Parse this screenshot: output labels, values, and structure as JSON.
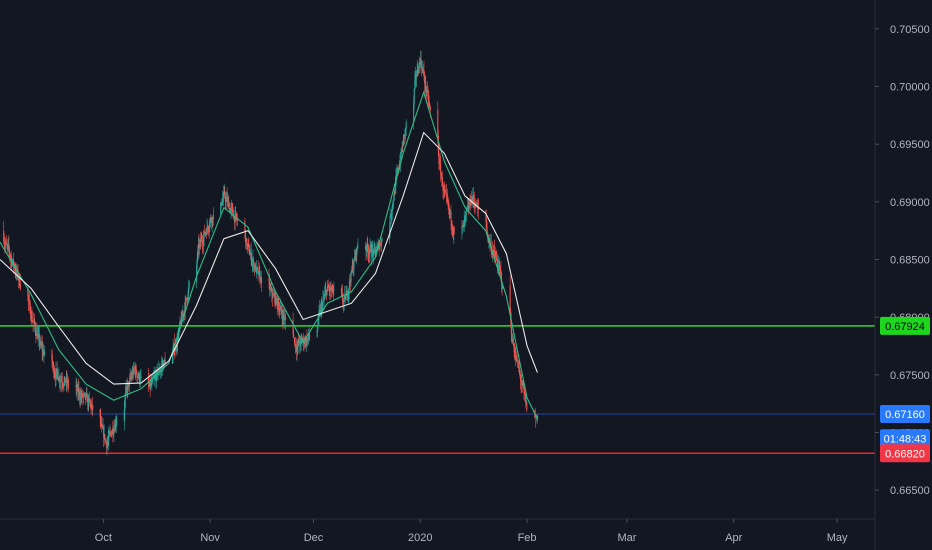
{
  "chart_data": {
    "type": "candlestick",
    "title": "",
    "xlabel": "",
    "ylabel": "",
    "ylim": [
      0.6625,
      0.7075
    ],
    "y_ticks": [
      0.665,
      0.67,
      0.675,
      0.68,
      0.685,
      0.69,
      0.695,
      0.7,
      0.705
    ],
    "y_tick_labels": [
      "0.66500",
      "0.67000",
      "0.67500",
      "0.68000",
      "0.68500",
      "0.69000",
      "0.69500",
      "0.70000",
      "0.70500"
    ],
    "x_range": [
      "2019-09-01",
      "2020-05-12"
    ],
    "x_ticks": [
      {
        "date": "2019-10-01",
        "label": "Oct"
      },
      {
        "date": "2019-11-01",
        "label": "Nov"
      },
      {
        "date": "2019-12-01",
        "label": "Dec"
      },
      {
        "date": "2020-01-01",
        "label": "2020"
      },
      {
        "date": "2020-02-01",
        "label": "Feb"
      },
      {
        "date": "2020-03-01",
        "label": "Mar"
      },
      {
        "date": "2020-04-01",
        "label": "Apr"
      },
      {
        "date": "2020-05-01",
        "label": "May"
      }
    ],
    "grid": false,
    "colors": {
      "background": "#131722",
      "up": "#26a69a",
      "down": "#ef5350",
      "ma_fast": "#2ebd85",
      "ma_slow": "#e8e8e8",
      "support": "#ff1f1f",
      "resistance": "#26e02a",
      "axis_text": "#b2b5be"
    },
    "price_path": [
      {
        "date": "2019-09-01",
        "price": 0.6875
      },
      {
        "date": "2019-09-05",
        "price": 0.6845
      },
      {
        "date": "2019-09-09",
        "price": 0.6812
      },
      {
        "date": "2019-09-13",
        "price": 0.6772
      },
      {
        "date": "2019-09-17",
        "price": 0.6752
      },
      {
        "date": "2019-09-22",
        "price": 0.6738
      },
      {
        "date": "2019-09-27",
        "price": 0.6725
      },
      {
        "date": "2019-10-02",
        "price": 0.669
      },
      {
        "date": "2019-10-06",
        "price": 0.6722
      },
      {
        "date": "2019-10-10",
        "price": 0.6755
      },
      {
        "date": "2019-10-14",
        "price": 0.6735
      },
      {
        "date": "2019-10-18",
        "price": 0.6758
      },
      {
        "date": "2019-10-22",
        "price": 0.6775
      },
      {
        "date": "2019-10-28",
        "price": 0.6855
      },
      {
        "date": "2019-11-01",
        "price": 0.6885
      },
      {
        "date": "2019-11-05",
        "price": 0.6905
      },
      {
        "date": "2019-11-10",
        "price": 0.6875
      },
      {
        "date": "2019-11-15",
        "price": 0.6835
      },
      {
        "date": "2019-11-20",
        "price": 0.6815
      },
      {
        "date": "2019-11-26",
        "price": 0.6775
      },
      {
        "date": "2019-12-01",
        "price": 0.6785
      },
      {
        "date": "2019-12-05",
        "price": 0.6825
      },
      {
        "date": "2019-12-10",
        "price": 0.6812
      },
      {
        "date": "2019-12-14",
        "price": 0.6865
      },
      {
        "date": "2019-12-19",
        "price": 0.6855
      },
      {
        "date": "2019-12-23",
        "price": 0.6885
      },
      {
        "date": "2019-12-29",
        "price": 0.6985
      },
      {
        "date": "2020-01-01",
        "price": 0.7025
      },
      {
        "date": "2020-01-04",
        "price": 0.6975
      },
      {
        "date": "2020-01-08",
        "price": 0.6905
      },
      {
        "date": "2020-01-12",
        "price": 0.6862
      },
      {
        "date": "2020-01-16",
        "price": 0.6905
      },
      {
        "date": "2020-01-20",
        "price": 0.6875
      },
      {
        "date": "2020-01-24",
        "price": 0.684
      },
      {
        "date": "2020-01-28",
        "price": 0.6775
      },
      {
        "date": "2020-02-02",
        "price": 0.6705
      },
      {
        "date": "2020-02-04",
        "price": 0.6716
      }
    ],
    "moving_averages": [
      {
        "color_key": "ma_fast",
        "points": [
          {
            "date": "2019-09-01",
            "price": 0.6865
          },
          {
            "date": "2019-09-10",
            "price": 0.682
          },
          {
            "date": "2019-09-18",
            "price": 0.6772
          },
          {
            "date": "2019-09-26",
            "price": 0.6742
          },
          {
            "date": "2019-10-04",
            "price": 0.6728
          },
          {
            "date": "2019-10-12",
            "price": 0.6738
          },
          {
            "date": "2019-10-20",
            "price": 0.676
          },
          {
            "date": "2019-10-28",
            "price": 0.6835
          },
          {
            "date": "2019-11-05",
            "price": 0.6895
          },
          {
            "date": "2019-11-12",
            "price": 0.6878
          },
          {
            "date": "2019-11-20",
            "price": 0.6822
          },
          {
            "date": "2019-11-28",
            "price": 0.6778
          },
          {
            "date": "2019-12-05",
            "price": 0.6812
          },
          {
            "date": "2019-12-12",
            "price": 0.6822
          },
          {
            "date": "2019-12-19",
            "price": 0.6852
          },
          {
            "date": "2019-12-27",
            "price": 0.6942
          },
          {
            "date": "2020-01-02",
            "price": 0.6995
          },
          {
            "date": "2020-01-08",
            "price": 0.6935
          },
          {
            "date": "2020-01-14",
            "price": 0.6895
          },
          {
            "date": "2020-01-20",
            "price": 0.6875
          },
          {
            "date": "2020-01-26",
            "price": 0.6818
          },
          {
            "date": "2020-02-01",
            "price": 0.673
          },
          {
            "date": "2020-02-04",
            "price": 0.6712
          }
        ]
      },
      {
        "color_key": "ma_slow",
        "points": [
          {
            "date": "2019-09-01",
            "price": 0.685
          },
          {
            "date": "2019-09-10",
            "price": 0.6825
          },
          {
            "date": "2019-09-18",
            "price": 0.6792
          },
          {
            "date": "2019-09-26",
            "price": 0.676
          },
          {
            "date": "2019-10-04",
            "price": 0.6742
          },
          {
            "date": "2019-10-12",
            "price": 0.6743
          },
          {
            "date": "2019-10-20",
            "price": 0.6762
          },
          {
            "date": "2019-10-28",
            "price": 0.681
          },
          {
            "date": "2019-11-05",
            "price": 0.6868
          },
          {
            "date": "2019-11-12",
            "price": 0.6875
          },
          {
            "date": "2019-11-20",
            "price": 0.6842
          },
          {
            "date": "2019-11-28",
            "price": 0.6798
          },
          {
            "date": "2019-12-05",
            "price": 0.6805
          },
          {
            "date": "2019-12-12",
            "price": 0.6812
          },
          {
            "date": "2019-12-19",
            "price": 0.6838
          },
          {
            "date": "2019-12-27",
            "price": 0.6905
          },
          {
            "date": "2020-01-02",
            "price": 0.696
          },
          {
            "date": "2020-01-08",
            "price": 0.6942
          },
          {
            "date": "2020-01-14",
            "price": 0.6905
          },
          {
            "date": "2020-01-20",
            "price": 0.689
          },
          {
            "date": "2020-01-26",
            "price": 0.6855
          },
          {
            "date": "2020-02-01",
            "price": 0.6775
          },
          {
            "date": "2020-02-04",
            "price": 0.6752
          }
        ]
      }
    ],
    "horizontal_lines": [
      {
        "price": 0.67924,
        "color_key": "resistance"
      },
      {
        "price": 0.6682,
        "color_key": "support"
      },
      {
        "price": 0.6716,
        "color": "#2962ff"
      }
    ],
    "price_labels": [
      {
        "text": "0.67924",
        "price": 0.67924,
        "bg": "#1fd61f",
        "fg": "#000000"
      },
      {
        "text": "0.67160",
        "price": 0.6716,
        "bg": "#2979ff",
        "fg": "#ffffff"
      },
      {
        "text": "01:48:43",
        "price": 0.6695,
        "bg": "#2979ff",
        "fg": "#ffffff"
      },
      {
        "text": "0.66820",
        "price": 0.6682,
        "bg": "#f23645",
        "fg": "#ffffff"
      }
    ]
  }
}
